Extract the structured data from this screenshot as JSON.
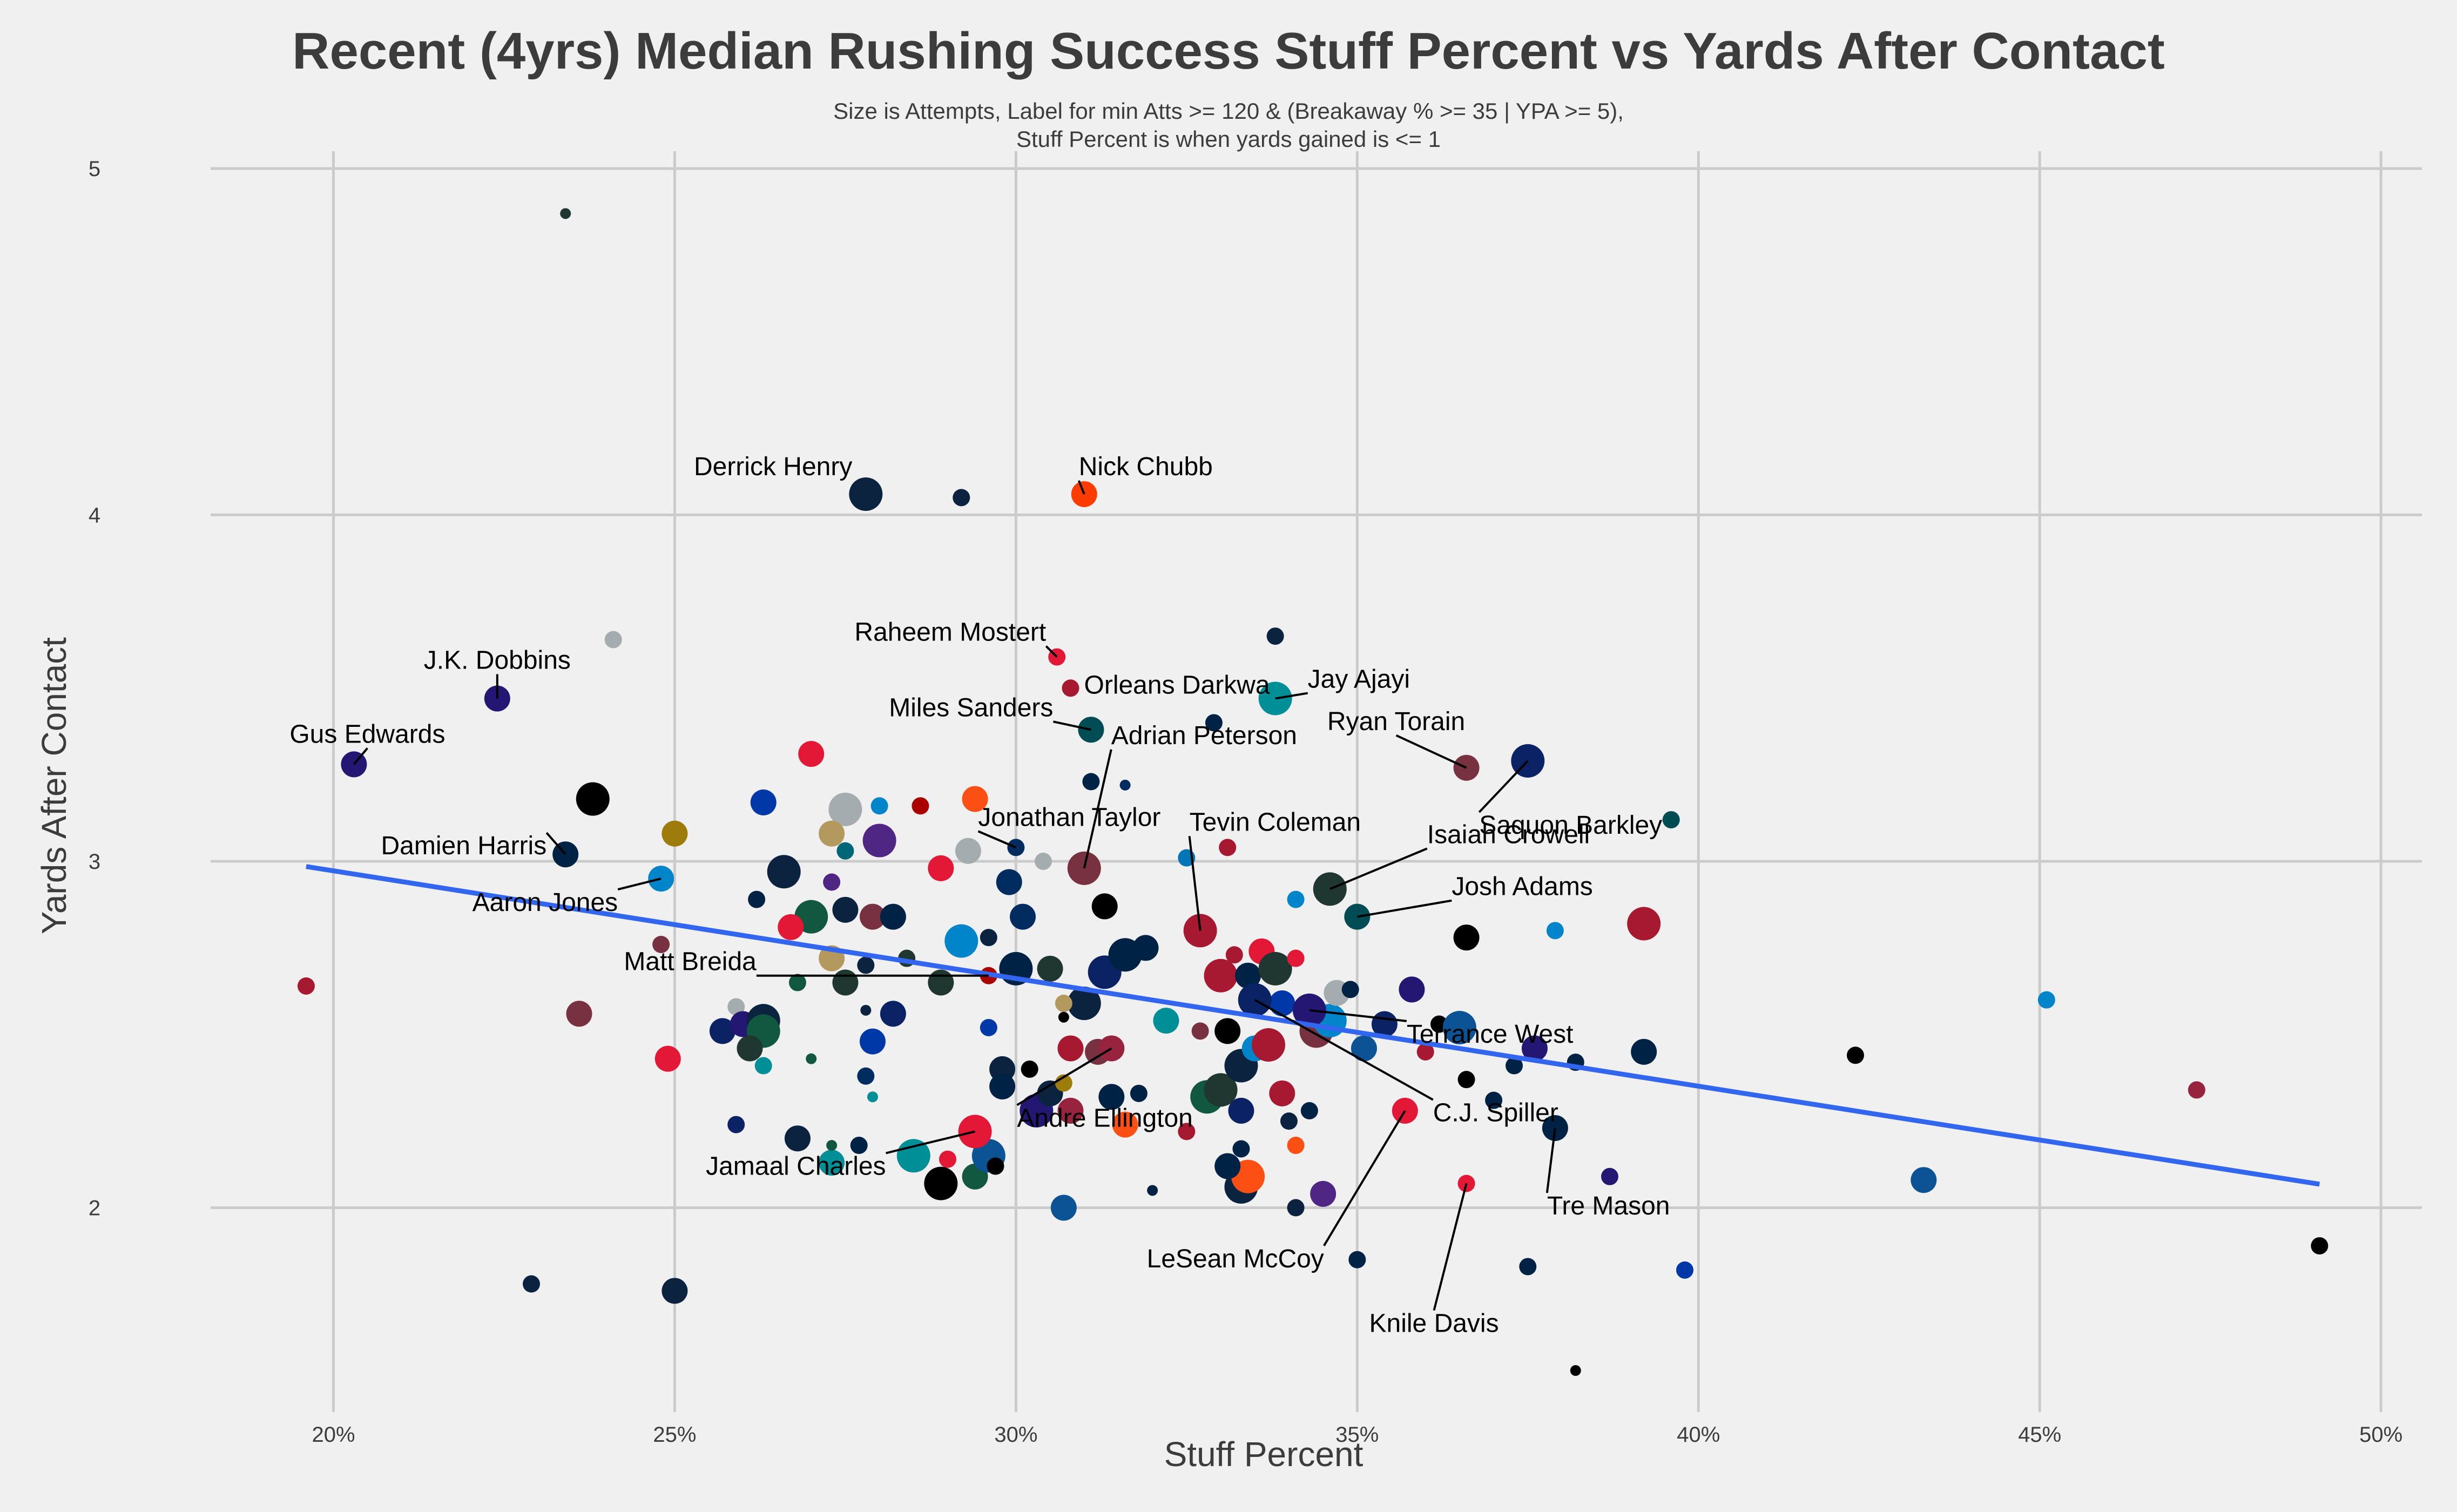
{
  "chart_data": {
    "type": "scatter",
    "title": "Recent (4yrs) Median Rushing Success Stuff Percent vs Yards After Contact",
    "subtitle_lines": [
      "Size is Attempts, Label for min Atts >= 120 & (Breakaway % >= 35 | YPA >= 5),",
      "Stuff Percent is when yards gained is <= 1"
    ],
    "xlabel": "Stuff Percent",
    "ylabel": "Yards After Contact",
    "xlim": [
      0.182,
      0.506
    ],
    "ylim": [
      1.41,
      5.05
    ],
    "xticks": [
      0.2,
      0.25,
      0.3,
      0.35,
      0.4,
      0.45,
      0.5
    ],
    "xtick_labels": [
      "20%",
      "25%",
      "30%",
      "35%",
      "40%",
      "45%",
      "50%"
    ],
    "yticks": [
      2,
      3,
      4,
      5
    ],
    "ytick_labels": [
      "2",
      "3",
      "4",
      "5"
    ],
    "grid": true,
    "trend_line": {
      "color": "#3366ee",
      "x": [
        0.196,
        0.491
      ],
      "y": [
        2.985,
        2.068
      ]
    },
    "labeled_points": [
      {
        "label": "Derrick Henry",
        "x": 0.278,
        "y": 4.06,
        "size": 3,
        "color": "#0c2340"
      },
      {
        "label": "Nick Chubb",
        "x": 0.31,
        "y": 4.06,
        "size": 2,
        "color": "#ff3c00"
      },
      {
        "label": "Raheem Mostert",
        "x": 0.306,
        "y": 3.59,
        "size": 1,
        "color": "#e31837"
      },
      {
        "label": "Orleans Darkwa",
        "x": 0.308,
        "y": 3.5,
        "size": 1,
        "color": "#a71930"
      },
      {
        "label": "Jay Ajayi",
        "x": 0.338,
        "y": 3.47,
        "size": 3,
        "color": "#008e97"
      },
      {
        "label": "J.K. Dobbins",
        "x": 0.224,
        "y": 3.47,
        "size": 2,
        "color": "#241773"
      },
      {
        "label": "Miles Sanders",
        "x": 0.311,
        "y": 3.38,
        "size": 2,
        "color": "#004c54"
      },
      {
        "label": "Ryan Torain",
        "x": 0.366,
        "y": 3.27,
        "size": 2,
        "color": "#773141"
      },
      {
        "label": "Gus Edwards",
        "x": 0.203,
        "y": 3.28,
        "size": 2,
        "color": "#241773"
      },
      {
        "label": "Adrian Peterson",
        "x": 0.31,
        "y": 2.98,
        "size": 3,
        "color": "#773141"
      },
      {
        "label": "Saquon Barkley",
        "x": 0.375,
        "y": 3.29,
        "size": 3,
        "color": "#0b2265"
      },
      {
        "label": "Jonathan Taylor",
        "x": 0.3,
        "y": 3.04,
        "size": 1,
        "color": "#002c5f"
      },
      {
        "label": "Tevin Coleman",
        "x": 0.327,
        "y": 2.8,
        "size": 3,
        "color": "#a71930"
      },
      {
        "label": "Isaiah Crowell",
        "x": 0.346,
        "y": 2.92,
        "size": 3,
        "color": "#203731"
      },
      {
        "label": "Damien Harris",
        "x": 0.234,
        "y": 3.02,
        "size": 2,
        "color": "#002244"
      },
      {
        "label": "Josh Adams",
        "x": 0.35,
        "y": 2.84,
        "size": 2,
        "color": "#004c54"
      },
      {
        "label": "Aaron Jones",
        "x": 0.248,
        "y": 2.95,
        "size": 2,
        "color": "#0085ca"
      },
      {
        "label": "Matt Breida",
        "x": 0.296,
        "y": 2.67,
        "size": 1,
        "color": "#aa0000"
      },
      {
        "label": "Terrance West",
        "x": 0.343,
        "y": 2.57,
        "size": 3,
        "color": "#241773"
      },
      {
        "label": "C.J. Spiller",
        "x": 0.335,
        "y": 2.6,
        "size": 3,
        "color": "#0b2265"
      },
      {
        "label": "Andre Ellington",
        "x": 0.314,
        "y": 2.46,
        "size": 2,
        "color": "#97233f"
      },
      {
        "label": "Jamaal Charles",
        "x": 0.294,
        "y": 2.22,
        "size": 3,
        "color": "#e31837"
      },
      {
        "label": "LeSean McCoy",
        "x": 0.357,
        "y": 2.28,
        "size": 2,
        "color": "#e31837"
      },
      {
        "label": "Knile Davis",
        "x": 0.366,
        "y": 2.07,
        "size": 1,
        "color": "#e31837"
      },
      {
        "label": "Tre Mason",
        "x": 0.379,
        "y": 2.23,
        "size": 2,
        "color": "#002244"
      }
    ],
    "points": [
      [
        0.234,
        4.87,
        0,
        "#203731"
      ],
      [
        0.292,
        4.05,
        1,
        "#0c2340"
      ],
      [
        0.241,
        3.64,
        1,
        "#a5acaf"
      ],
      [
        0.338,
        3.65,
        1,
        "#0c2340"
      ],
      [
        0.329,
        3.4,
        1,
        "#002244"
      ],
      [
        0.27,
        3.31,
        2,
        "#e31837"
      ],
      [
        0.238,
        3.18,
        3,
        "#000000"
      ],
      [
        0.275,
        3.15,
        3,
        "#a5acaf"
      ],
      [
        0.294,
        3.18,
        2,
        "#fb4f14"
      ],
      [
        0.286,
        3.16,
        1,
        "#aa0000"
      ],
      [
        0.28,
        3.16,
        1,
        "#0085ca"
      ],
      [
        0.263,
        3.17,
        2,
        "#0038a8"
      ],
      [
        0.311,
        3.23,
        1,
        "#002244"
      ],
      [
        0.316,
        3.22,
        0,
        "#002c5f"
      ],
      [
        0.396,
        3.12,
        1,
        "#004c54"
      ],
      [
        0.25,
        3.08,
        2,
        "#9e7c0c"
      ],
      [
        0.273,
        3.08,
        2,
        "#b3995d"
      ],
      [
        0.28,
        3.06,
        3,
        "#4f2683"
      ],
      [
        0.293,
        3.03,
        2,
        "#a5acaf"
      ],
      [
        0.304,
        3.0,
        1,
        "#a5acaf"
      ],
      [
        0.275,
        3.03,
        1,
        "#006778"
      ],
      [
        0.266,
        2.97,
        3,
        "#0c2340"
      ],
      [
        0.289,
        2.98,
        2,
        "#e31837"
      ],
      [
        0.273,
        2.94,
        1,
        "#4f2683"
      ],
      [
        0.299,
        2.94,
        2,
        "#002c5f"
      ],
      [
        0.325,
        3.01,
        1,
        "#0076b6"
      ],
      [
        0.331,
        3.04,
        1,
        "#a71930"
      ],
      [
        0.262,
        2.89,
        1,
        "#002244"
      ],
      [
        0.275,
        2.86,
        2,
        "#0c2340"
      ],
      [
        0.27,
        2.84,
        3,
        "#125740"
      ],
      [
        0.279,
        2.84,
        2,
        "#773141"
      ],
      [
        0.282,
        2.84,
        2,
        "#002244"
      ],
      [
        0.301,
        2.84,
        2,
        "#002c5f"
      ],
      [
        0.313,
        2.87,
        2,
        "#000000"
      ],
      [
        0.341,
        2.89,
        1,
        "#0085ca"
      ],
      [
        0.296,
        2.78,
        1,
        "#0c2340"
      ],
      [
        0.292,
        2.77,
        3,
        "#0085ca"
      ],
      [
        0.267,
        2.81,
        2,
        "#e31837"
      ],
      [
        0.248,
        2.76,
        1,
        "#773141"
      ],
      [
        0.273,
        2.72,
        2,
        "#b3995d"
      ],
      [
        0.278,
        2.7,
        1,
        "#0c2340"
      ],
      [
        0.284,
        2.72,
        1,
        "#203731"
      ],
      [
        0.268,
        2.65,
        1,
        "#125740"
      ],
      [
        0.275,
        2.65,
        2,
        "#203731"
      ],
      [
        0.3,
        2.69,
        3,
        "#002244"
      ],
      [
        0.305,
        2.69,
        2,
        "#203731"
      ],
      [
        0.313,
        2.68,
        3,
        "#0b2265"
      ],
      [
        0.316,
        2.73,
        3,
        "#002244"
      ],
      [
        0.319,
        2.75,
        2,
        "#002244"
      ],
      [
        0.33,
        2.67,
        3,
        "#a71930"
      ],
      [
        0.334,
        2.67,
        2,
        "#002244"
      ],
      [
        0.336,
        2.74,
        2,
        "#e31837"
      ],
      [
        0.338,
        2.69,
        3,
        "#203731"
      ],
      [
        0.341,
        2.72,
        1,
        "#e31837"
      ],
      [
        0.332,
        2.73,
        1,
        "#a71930"
      ],
      [
        0.259,
        2.58,
        1,
        "#a5acaf"
      ],
      [
        0.257,
        2.51,
        2,
        "#0b2265"
      ],
      [
        0.26,
        2.53,
        2,
        "#241773"
      ],
      [
        0.263,
        2.54,
        3,
        "#0c2340"
      ],
      [
        0.263,
        2.51,
        3,
        "#125740"
      ],
      [
        0.261,
        2.46,
        2,
        "#203731"
      ],
      [
        0.263,
        2.41,
        1,
        "#008e97"
      ],
      [
        0.236,
        2.56,
        2,
        "#773141"
      ],
      [
        0.249,
        2.43,
        2,
        "#e31837"
      ],
      [
        0.196,
        2.64,
        1,
        "#a71930"
      ],
      [
        0.27,
        2.43,
        0,
        "#125740"
      ],
      [
        0.278,
        2.38,
        1,
        "#002c5f"
      ],
      [
        0.278,
        2.57,
        0,
        "#0c2340"
      ],
      [
        0.279,
        2.48,
        2,
        "#0038a8"
      ],
      [
        0.282,
        2.56,
        2,
        "#0b2265"
      ],
      [
        0.289,
        2.65,
        2,
        "#203731"
      ],
      [
        0.296,
        2.52,
        1,
        "#0038a8"
      ],
      [
        0.298,
        2.4,
        2,
        "#0c2340"
      ],
      [
        0.298,
        2.35,
        2,
        "#002244"
      ],
      [
        0.302,
        2.4,
        1,
        "#000000"
      ],
      [
        0.303,
        2.28,
        3,
        "#241773"
      ],
      [
        0.305,
        2.33,
        2,
        "#0c2340"
      ],
      [
        0.307,
        2.36,
        1,
        "#9e7c0c"
      ],
      [
        0.308,
        2.28,
        2,
        "#97233f"
      ],
      [
        0.308,
        2.46,
        2,
        "#a71930"
      ],
      [
        0.312,
        2.45,
        2,
        "#773141"
      ],
      [
        0.31,
        2.59,
        3,
        "#0c2340"
      ],
      [
        0.307,
        2.59,
        1,
        "#b3995d"
      ],
      [
        0.307,
        2.55,
        0,
        "#000000"
      ],
      [
        0.314,
        2.32,
        2,
        "#002244"
      ],
      [
        0.316,
        2.24,
        2,
        "#fb4f14"
      ],
      [
        0.318,
        2.33,
        1,
        "#002244"
      ],
      [
        0.32,
        2.05,
        0,
        "#002244"
      ],
      [
        0.322,
        2.54,
        2,
        "#008e97"
      ],
      [
        0.325,
        2.22,
        1,
        "#a71930"
      ],
      [
        0.327,
        2.51,
        1,
        "#773141"
      ],
      [
        0.328,
        2.32,
        3,
        "#125740"
      ],
      [
        0.33,
        2.34,
        3,
        "#203731"
      ],
      [
        0.331,
        2.51,
        2,
        "#000000"
      ],
      [
        0.333,
        2.41,
        3,
        "#0c2340"
      ],
      [
        0.333,
        2.28,
        2,
        "#0b2265"
      ],
      [
        0.335,
        2.46,
        2,
        "#0085ca"
      ],
      [
        0.337,
        2.47,
        3,
        "#a71930"
      ],
      [
        0.339,
        2.33,
        2,
        "#a71930"
      ],
      [
        0.34,
        2.25,
        1,
        "#0c2340"
      ],
      [
        0.343,
        2.28,
        1,
        "#002244"
      ],
      [
        0.339,
        2.59,
        2,
        "#0038a8"
      ],
      [
        0.344,
        2.51,
        3,
        "#773141"
      ],
      [
        0.346,
        2.54,
        3,
        "#0085ca"
      ],
      [
        0.347,
        2.62,
        2,
        "#a5acaf"
      ],
      [
        0.349,
        2.63,
        1,
        "#002244"
      ],
      [
        0.351,
        2.46,
        2,
        "#0b5394"
      ],
      [
        0.354,
        2.53,
        2,
        "#0b2265"
      ],
      [
        0.358,
        2.63,
        2,
        "#241773"
      ],
      [
        0.36,
        2.45,
        1,
        "#a71930"
      ],
      [
        0.362,
        2.53,
        1,
        "#000000"
      ],
      [
        0.365,
        2.52,
        3,
        "#0b5394"
      ],
      [
        0.366,
        2.37,
        1,
        "#000000"
      ],
      [
        0.37,
        2.31,
        1,
        "#002244"
      ],
      [
        0.373,
        2.41,
        1,
        "#002244"
      ],
      [
        0.376,
        2.46,
        2,
        "#241773"
      ],
      [
        0.382,
        2.42,
        1,
        "#002244"
      ],
      [
        0.392,
        2.45,
        2,
        "#002244"
      ],
      [
        0.392,
        2.82,
        3,
        "#a71930"
      ],
      [
        0.379,
        2.8,
        1,
        "#0085ca"
      ],
      [
        0.366,
        2.78,
        2,
        "#000000"
      ],
      [
        0.423,
        2.44,
        1,
        "#000000"
      ],
      [
        0.451,
        2.6,
        1,
        "#0085ca"
      ],
      [
        0.433,
        2.08,
        2,
        "#0b5394"
      ],
      [
        0.473,
        2.34,
        1,
        "#97233f"
      ],
      [
        0.491,
        1.89,
        1,
        "#000000"
      ],
      [
        0.398,
        1.82,
        1,
        "#0038a8"
      ],
      [
        0.387,
        2.09,
        1,
        "#241773"
      ],
      [
        0.375,
        1.83,
        1,
        "#002244"
      ],
      [
        0.382,
        1.53,
        0,
        "#000000"
      ],
      [
        0.35,
        1.85,
        1,
        "#002244"
      ],
      [
        0.345,
        2.04,
        2,
        "#4f2683"
      ],
      [
        0.341,
        2.0,
        1,
        "#0c2340"
      ],
      [
        0.333,
        2.06,
        3,
        "#0c2340"
      ],
      [
        0.334,
        2.09,
        3,
        "#fb4f14"
      ],
      [
        0.331,
        2.12,
        2,
        "#002244"
      ],
      [
        0.333,
        2.17,
        1,
        "#002244"
      ],
      [
        0.341,
        2.18,
        1,
        "#fb4f14"
      ],
      [
        0.307,
        2.0,
        2,
        "#0b5394"
      ],
      [
        0.294,
        2.09,
        2,
        "#125740"
      ],
      [
        0.29,
        2.14,
        1,
        "#e31837"
      ],
      [
        0.285,
        2.15,
        3,
        "#008e97"
      ],
      [
        0.289,
        2.07,
        3,
        "#000000"
      ],
      [
        0.296,
        2.15,
        3,
        "#0b5394"
      ],
      [
        0.297,
        2.12,
        1,
        "#000000"
      ],
      [
        0.273,
        2.13,
        2,
        "#008e97"
      ],
      [
        0.277,
        2.18,
        1,
        "#002244"
      ],
      [
        0.273,
        2.18,
        0,
        "#125740"
      ],
      [
        0.268,
        2.2,
        2,
        "#0c2340"
      ],
      [
        0.259,
        2.24,
        1,
        "#0b2265"
      ],
      [
        0.279,
        2.32,
        0,
        "#008e97"
      ],
      [
        0.25,
        1.76,
        2,
        "#0c2340"
      ],
      [
        0.229,
        1.78,
        1,
        "#0c2340"
      ]
    ]
  }
}
